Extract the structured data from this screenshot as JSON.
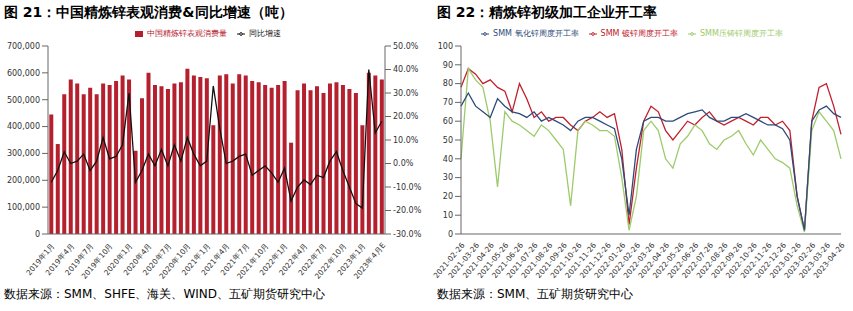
{
  "chart_data": [
    {
      "type": "bar",
      "title": "图 21：中国精炼锌表观消费&同比增速（吨）",
      "source": "数据来源：SMM、SHFE、海关、WIND、五矿期货研究中心",
      "categories": [
        "2019年1月",
        null,
        null,
        "2019年4月",
        null,
        null,
        "2019年7月",
        null,
        null,
        "2019年10月",
        null,
        null,
        "2020年1月",
        null,
        null,
        "2020年4月",
        null,
        null,
        "2020年7月",
        null,
        null,
        "2020年10月",
        null,
        null,
        "2021年1月",
        null,
        null,
        "2021年4月",
        null,
        null,
        "2021年7月",
        null,
        null,
        "2021年10月",
        null,
        null,
        "2022年1月",
        null,
        null,
        "2022年4月",
        null,
        null,
        "2022年7月",
        null,
        null,
        "2022年10月",
        null,
        null,
        "2023年1月",
        null,
        null,
        "2023年4月E"
      ],
      "series": [
        {
          "name": "中国精炼锌表观消费量",
          "type": "bar",
          "color": "#b5202e",
          "values": [
            445000,
            335000,
            520000,
            575000,
            560000,
            520000,
            545000,
            520000,
            560000,
            555000,
            570000,
            590000,
            575000,
            310000,
            505000,
            600000,
            555000,
            550000,
            540000,
            560000,
            565000,
            615000,
            590000,
            585000,
            580000,
            405000,
            590000,
            595000,
            560000,
            595000,
            590000,
            570000,
            565000,
            555000,
            545000,
            555000,
            570000,
            340000,
            535000,
            560000,
            535000,
            550000,
            525000,
            560000,
            565000,
            555000,
            540000,
            525000,
            405000,
            600000,
            590000,
            575000
          ]
        },
        {
          "name": "同比增速",
          "type": "line",
          "axis": "y2",
          "color": "#111111",
          "values": [
            -8,
            -3,
            5,
            0,
            1,
            4,
            -3,
            1,
            11,
            2,
            3,
            8,
            30,
            -8,
            -3,
            4,
            -1,
            6,
            -1,
            8,
            1,
            11,
            4,
            -1,
            1,
            33,
            15,
            0,
            1,
            3,
            4,
            -5,
            -3,
            -1,
            -4,
            -8,
            -2,
            -16,
            -10,
            -7,
            -9,
            -5,
            -6,
            1,
            5,
            -3,
            -10,
            -17,
            -19,
            40,
            13,
            18
          ]
        }
      ],
      "ylim": [
        0,
        700000
      ],
      "yticks": [
        0,
        {
          "value": 100000,
          "label": "100,000"
        },
        {
          "value": 200000,
          "label": "200,000"
        },
        {
          "value": 300000,
          "label": "300,000"
        },
        {
          "value": 400000,
          "label": "400,000"
        },
        {
          "value": 500000,
          "label": "500,000"
        },
        {
          "value": 600000,
          "label": "600,000"
        },
        {
          "value": 700000,
          "label": "700,000"
        }
      ],
      "y2lim": [
        -30,
        50
      ],
      "y2ticks": [
        {
          "value": -30,
          "label": "-30.0%"
        },
        {
          "value": -20,
          "label": "-20.0%"
        },
        {
          "value": -10,
          "label": "-10.0%"
        },
        {
          "value": 0,
          "label": "0.0%"
        },
        {
          "value": 10,
          "label": "10.0%"
        },
        {
          "value": 20,
          "label": "20.0%"
        },
        {
          "value": 30,
          "label": "30.0%"
        },
        {
          "value": 40,
          "label": "40.0%"
        },
        {
          "value": 50,
          "label": "50.0%"
        }
      ],
      "grid": false,
      "legend": "top"
    },
    {
      "type": "line",
      "title": "图 22：精炼锌初级加工企业开工率",
      "source": "数据来源：SMM、五矿期货研究中心",
      "categories": [
        "2021-02-26",
        null,
        "2021-03-26",
        null,
        "2021-04-26",
        null,
        "2021-05-26",
        null,
        "2021-06-26",
        null,
        "2021-07-26",
        null,
        "2021-08-26",
        null,
        "2021-09-26",
        null,
        "2021-10-26",
        null,
        "2021-11-26",
        null,
        "2021-12-26",
        null,
        "2022-01-26",
        null,
        "2022-02-26",
        null,
        "2022-03-26",
        null,
        "2022-04-26",
        null,
        "2022-05-26",
        null,
        "2022-06-26",
        null,
        "2022-07-26",
        null,
        "2022-08-26",
        null,
        "2022-09-26",
        null,
        "2022-10-26",
        null,
        "2022-11-26",
        null,
        "2022-12-26",
        null,
        "2023-01-26",
        null,
        "2023-02-26",
        null,
        "2023-03-26",
        null,
        "2023-04-26"
      ],
      "series": [
        {
          "name": "SMM 镀锌周度开工率",
          "type": "line",
          "color": "#c0202c",
          "values": [
            78,
            88,
            85,
            80,
            82,
            78,
            76,
            65,
            80,
            72,
            62,
            65,
            60,
            62,
            62,
            58,
            55,
            60,
            62,
            65,
            62,
            64,
            45,
            5,
            35,
            60,
            68,
            65,
            55,
            50,
            55,
            60,
            58,
            62,
            65,
            60,
            58,
            60,
            62,
            60,
            58,
            62,
            62,
            58,
            60,
            55,
            20,
            2,
            60,
            78,
            80,
            68,
            53
          ]
        },
        {
          "name": "SMM压铸锌周度开工率",
          "type": "line",
          "color": "#9ccb6a",
          "values": [
            40,
            88,
            82,
            78,
            60,
            25,
            65,
            60,
            58,
            55,
            52,
            58,
            55,
            50,
            45,
            15,
            55,
            60,
            58,
            55,
            55,
            52,
            30,
            2,
            20,
            55,
            60,
            55,
            40,
            35,
            48,
            52,
            58,
            55,
            48,
            45,
            50,
            52,
            55,
            48,
            42,
            50,
            45,
            40,
            38,
            35,
            15,
            1,
            55,
            65,
            60,
            55,
            40
          ]
        },
        {
          "name": "SMM 氧化锌周度开工率",
          "type": "line",
          "color": "#2d4b7a",
          "values": [
            68,
            75,
            68,
            65,
            62,
            72,
            68,
            65,
            64,
            62,
            65,
            60,
            62,
            60,
            58,
            55,
            60,
            62,
            62,
            60,
            58,
            56,
            40,
            10,
            45,
            60,
            62,
            62,
            60,
            60,
            62,
            64,
            65,
            66,
            62,
            60,
            60,
            62,
            62,
            64,
            62,
            60,
            58,
            58,
            56,
            50,
            20,
            2,
            60,
            66,
            68,
            64,
            62
          ]
        }
      ],
      "ylim": [
        0,
        100
      ],
      "yticks": [
        0,
        10,
        20,
        30,
        40,
        50,
        60,
        70,
        80,
        90,
        100
      ],
      "grid": false,
      "legend": "top"
    }
  ]
}
